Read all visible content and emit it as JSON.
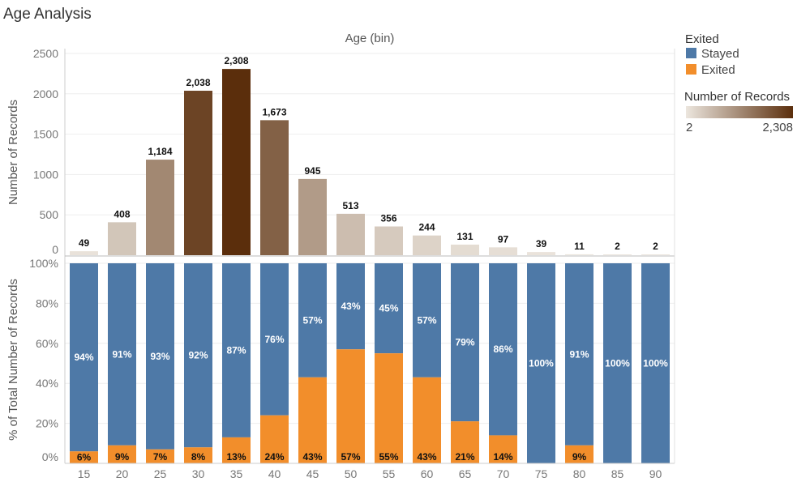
{
  "title": "Age Analysis",
  "colors": {
    "stayed": "#4e79a7",
    "exited": "#f28e2b",
    "ramp_low": "#ece6de",
    "ramp_high": "#5b2e0c"
  },
  "legend": {
    "exited_title": "Exited",
    "items": [
      {
        "label": "Stayed",
        "color": "#4e79a7"
      },
      {
        "label": "Exited",
        "color": "#f28e2b"
      }
    ],
    "records_title": "Number of Records",
    "records_min": "2",
    "records_max": "2,308"
  },
  "chart_data": [
    {
      "type": "bar",
      "title": "Age (bin)",
      "xlabel": "",
      "ylabel": "Number of Records",
      "categories": [
        "15",
        "20",
        "25",
        "30",
        "35",
        "40",
        "45",
        "50",
        "55",
        "60",
        "65",
        "70",
        "75",
        "80",
        "85",
        "90"
      ],
      "values": [
        49,
        408,
        1184,
        2038,
        2308,
        1673,
        945,
        513,
        356,
        244,
        131,
        97,
        39,
        11,
        2,
        2
      ],
      "value_labels": [
        "49",
        "408",
        "1,184",
        "2,038",
        "2,308",
        "1,673",
        "945",
        "513",
        "356",
        "244",
        "131",
        "97",
        "39",
        "11",
        "2",
        "2"
      ],
      "ylim": [
        0,
        2500
      ],
      "yticks": [
        "0",
        "500",
        "1000",
        "1500",
        "2000",
        "2500"
      ],
      "color_scale": [
        2,
        2308
      ]
    },
    {
      "type": "bar",
      "stacked": true,
      "xlabel": "",
      "ylabel": "% of Total Number of Records",
      "categories": [
        "15",
        "20",
        "25",
        "30",
        "35",
        "40",
        "45",
        "50",
        "55",
        "60",
        "65",
        "70",
        "75",
        "80",
        "85",
        "90"
      ],
      "series": [
        {
          "name": "Stayed",
          "values": [
            94,
            91,
            93,
            92,
            87,
            76,
            57,
            43,
            45,
            57,
            79,
            86,
            100,
            91,
            100,
            100
          ],
          "labels": [
            "94%",
            "91%",
            "93%",
            "92%",
            "87%",
            "76%",
            "57%",
            "43%",
            "45%",
            "57%",
            "79%",
            "86%",
            "100%",
            "91%",
            "100%",
            "100%"
          ]
        },
        {
          "name": "Exited",
          "values": [
            6,
            9,
            7,
            8,
            13,
            24,
            43,
            57,
            55,
            43,
            21,
            14,
            0,
            9,
            0,
            0
          ],
          "labels": [
            "6%",
            "9%",
            "7%",
            "8%",
            "13%",
            "24%",
            "43%",
            "57%",
            "55%",
            "43%",
            "21%",
            "14%",
            "",
            "9%",
            "",
            ""
          ]
        }
      ],
      "ylim": [
        0,
        100
      ],
      "yticks": [
        "0%",
        "20%",
        "40%",
        "60%",
        "80%",
        "100%"
      ]
    }
  ]
}
